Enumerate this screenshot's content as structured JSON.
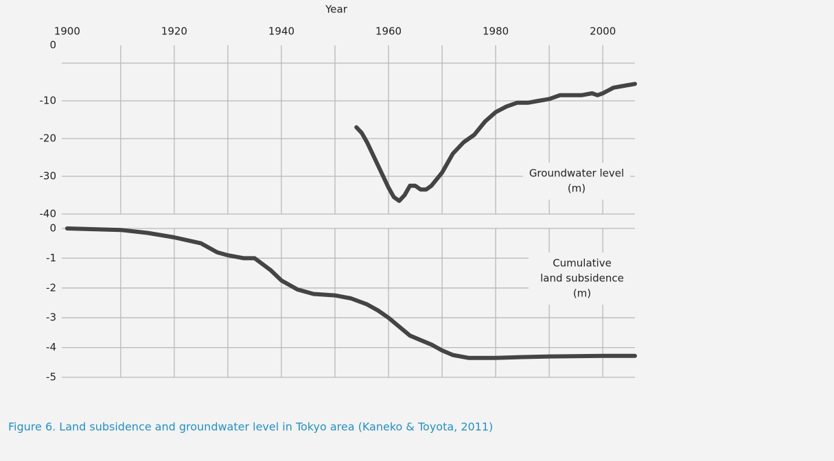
{
  "caption": "Figure 6.  Land subsidence and groundwater level in Tokyo area (Kaneko & Toyota, 2011)",
  "chart_data": [
    {
      "type": "line",
      "x_label": "Year",
      "xlim": [
        1899,
        2006
      ],
      "xticks": [
        1900,
        1920,
        1940,
        1960,
        1980,
        2000
      ],
      "xgrid": [
        1910,
        1920,
        1930,
        1940,
        1950,
        1960,
        1970,
        1980,
        1990,
        2000
      ],
      "ylim": [
        -40,
        0
      ],
      "yticks": [
        0,
        -10,
        -20,
        -30,
        -40
      ],
      "annotation": [
        "Groundwater level",
        "(m)"
      ],
      "series": [
        {
          "name": "Groundwater level",
          "color": "#444444",
          "x": [
            1954,
            1955,
            1956,
            1957,
            1958,
            1959,
            1960,
            1961,
            1962,
            1963,
            1964,
            1965,
            1966,
            1967,
            1968,
            1970,
            1972,
            1974,
            1976,
            1978,
            1980,
            1982,
            1984,
            1986,
            1988,
            1990,
            1992,
            1994,
            1996,
            1998,
            1999,
            2000,
            2002,
            2004,
            2006
          ],
          "values": [
            -17,
            -18.5,
            -21,
            -24,
            -27,
            -30,
            -33,
            -35.5,
            -36.5,
            -35,
            -32.5,
            -32.5,
            -33.5,
            -33.5,
            -32.5,
            -29,
            -24,
            -21,
            -19,
            -15.5,
            -13,
            -11.5,
            -10.5,
            -10.5,
            -10,
            -9.5,
            -8.5,
            -8.5,
            -8.5,
            -8,
            -8.5,
            -8,
            -6.5,
            -6,
            -5.5
          ]
        }
      ]
    },
    {
      "type": "line",
      "xlim": [
        1899,
        2006
      ],
      "xgrid": [
        1910,
        1920,
        1930,
        1940,
        1950,
        1960,
        1970,
        1980,
        1990,
        2000
      ],
      "ylim": [
        -5,
        0
      ],
      "yticks": [
        0,
        -1,
        -2,
        -3,
        -4,
        -5
      ],
      "annotation": [
        "Cumulative",
        "land subsidence",
        "(m)"
      ],
      "series": [
        {
          "name": "Cumulative land subsidence",
          "color": "#444444",
          "x": [
            1900,
            1910,
            1915,
            1920,
            1925,
            1928,
            1930,
            1933,
            1935,
            1938,
            1940,
            1943,
            1946,
            1950,
            1953,
            1956,
            1958,
            1960,
            1962,
            1964,
            1966,
            1968,
            1970,
            1972,
            1975,
            1980,
            1985,
            1990,
            2000,
            2006
          ],
          "values": [
            0,
            -0.05,
            -0.15,
            -0.3,
            -0.5,
            -0.8,
            -0.9,
            -1,
            -1,
            -1.4,
            -1.75,
            -2.05,
            -2.2,
            -2.25,
            -2.35,
            -2.55,
            -2.75,
            -3,
            -3.3,
            -3.6,
            -3.75,
            -3.9,
            -4.1,
            -4.25,
            -4.35,
            -4.35,
            -4.32,
            -4.3,
            -4.28,
            -4.28
          ]
        }
      ]
    }
  ]
}
